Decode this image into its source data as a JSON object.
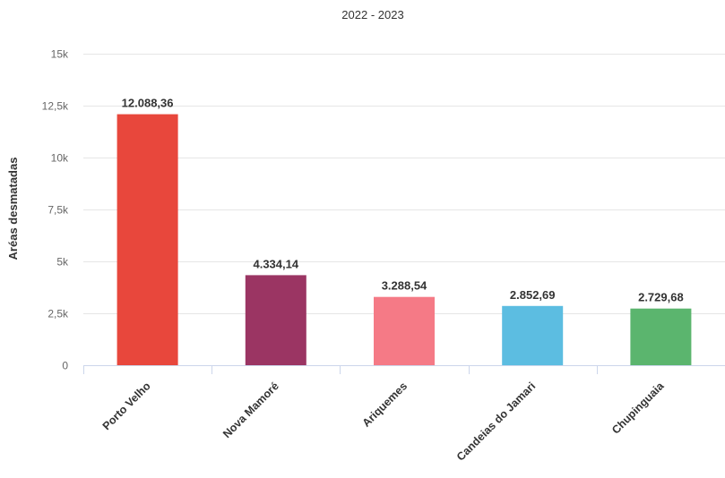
{
  "chart_data": {
    "type": "bar",
    "subtitle": "2022 - 2023",
    "ylabel": "Aréas desmatadas",
    "ylim": [
      0,
      15000
    ],
    "yticks": [
      0,
      2500,
      5000,
      7500,
      10000,
      12500,
      15000
    ],
    "ytick_labels": [
      "0",
      "2,5k",
      "5k",
      "7,5k",
      "10k",
      "12,5k",
      "15k"
    ],
    "categories": [
      "Porto Velho",
      "Nova Mamoré",
      "Ariquemes",
      "Candeias do Jamari",
      "Chupinguaia"
    ],
    "values": [
      12088.36,
      4334.14,
      3288.54,
      2852.69,
      2729.68
    ],
    "value_labels": [
      "12.088,36",
      "4.334,14",
      "3.288,54",
      "2.852,69",
      "2.729,68"
    ],
    "colors": [
      "#e8473c",
      "#9b3563",
      "#f57a86",
      "#5cbde1",
      "#5bb56e"
    ],
    "grid": true,
    "legend": "none"
  }
}
